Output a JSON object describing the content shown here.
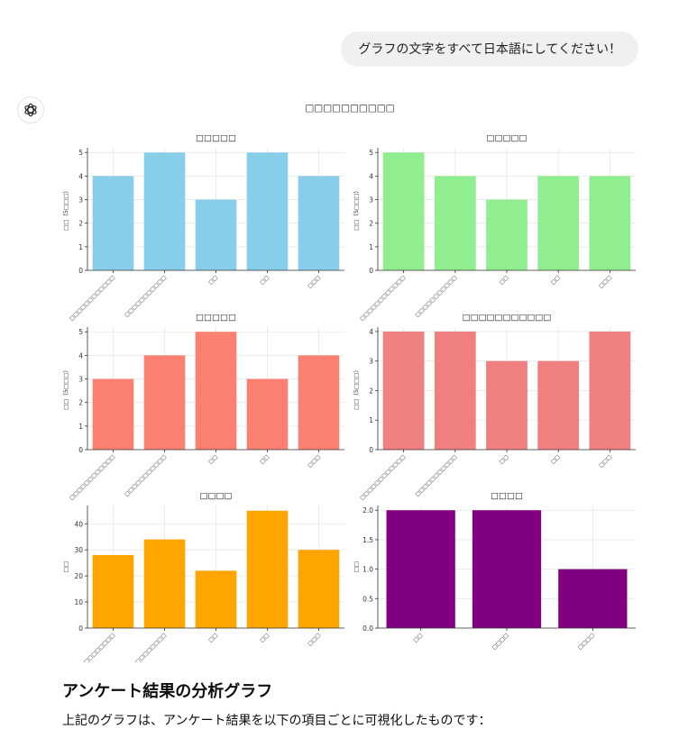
{
  "user_message": "グラフの文字をすべて日本語にしてください！",
  "assistant_icon": "openai-logo-icon",
  "figure_title": "□□□□□□□□□□",
  "chart_data": [
    {
      "type": "bar",
      "title": "□□□□□",
      "ylabel": "□□（5□□□）",
      "categories": [
        "□□□□□□□□□□□□",
        "□□□□□□□□□□□",
        "□□",
        "□□",
        "□□□"
      ],
      "values": [
        4,
        5,
        3,
        5,
        4
      ],
      "ylim": [
        0,
        5.2
      ],
      "yticks": [
        0,
        1,
        2,
        3,
        4,
        5
      ],
      "tick_format": "int",
      "color": "#87CEEB",
      "grid": true
    },
    {
      "type": "bar",
      "title": "□□□□□",
      "ylabel": "□□（5□□□）",
      "categories": [
        "□□□□□□□□□□□□",
        "□□□□□□□□□□□",
        "□□",
        "□□",
        "□□□"
      ],
      "values": [
        5,
        4,
        3,
        4,
        4
      ],
      "ylim": [
        0,
        5.2
      ],
      "yticks": [
        0,
        1,
        2,
        3,
        4,
        5
      ],
      "tick_format": "int",
      "color": "#90EE90",
      "grid": true
    },
    {
      "type": "bar",
      "title": "□□□□□",
      "ylabel": "□□（5□□□）",
      "categories": [
        "□□□□□□□□□□□□",
        "□□□□□□□□□□□",
        "□□",
        "□□",
        "□□□"
      ],
      "values": [
        3,
        4,
        5,
        3,
        4
      ],
      "ylim": [
        0,
        5.2
      ],
      "yticks": [
        0,
        1,
        2,
        3,
        4,
        5
      ],
      "tick_format": "int",
      "color": "#FA8072",
      "grid": true
    },
    {
      "type": "bar",
      "title": "□□□□□□□□□□□",
      "ylabel": "□□（5□□□）",
      "categories": [
        "□□□□□□□□□□□□",
        "□□□□□□□□□□□",
        "□□",
        "□□",
        "□□□"
      ],
      "values": [
        4,
        4,
        3,
        3,
        4
      ],
      "ylim": [
        0,
        4.15
      ],
      "yticks": [
        0,
        1,
        2,
        3,
        4
      ],
      "tick_format": "int",
      "color": "#F08080",
      "grid": true
    },
    {
      "type": "bar",
      "title": "□□□□",
      "ylabel": "□□",
      "categories": [
        "□□□□□□□□□□□□",
        "□□□□□□□□□□□",
        "□□",
        "□□",
        "□□□"
      ],
      "values": [
        28,
        34,
        22,
        45,
        30
      ],
      "ylim": [
        0,
        47
      ],
      "yticks": [
        0,
        10,
        20,
        30,
        40
      ],
      "tick_format": "int",
      "color": "#FFA500",
      "grid": true
    },
    {
      "type": "bar",
      "title": "□□□□",
      "ylabel": "□□",
      "categories": [
        "□□",
        "□□□□",
        "□□□□"
      ],
      "values": [
        2,
        2,
        1
      ],
      "ylim": [
        0,
        2.08
      ],
      "yticks": [
        0,
        0.5,
        1,
        1.5,
        2
      ],
      "tick_format": "1dp",
      "color": "#800080",
      "grid": true
    }
  ],
  "answer": {
    "heading": "アンケート結果の分析グラフ",
    "body": "上記のグラフは、アンケート結果を以下の項目ごとに可視化したものです："
  }
}
